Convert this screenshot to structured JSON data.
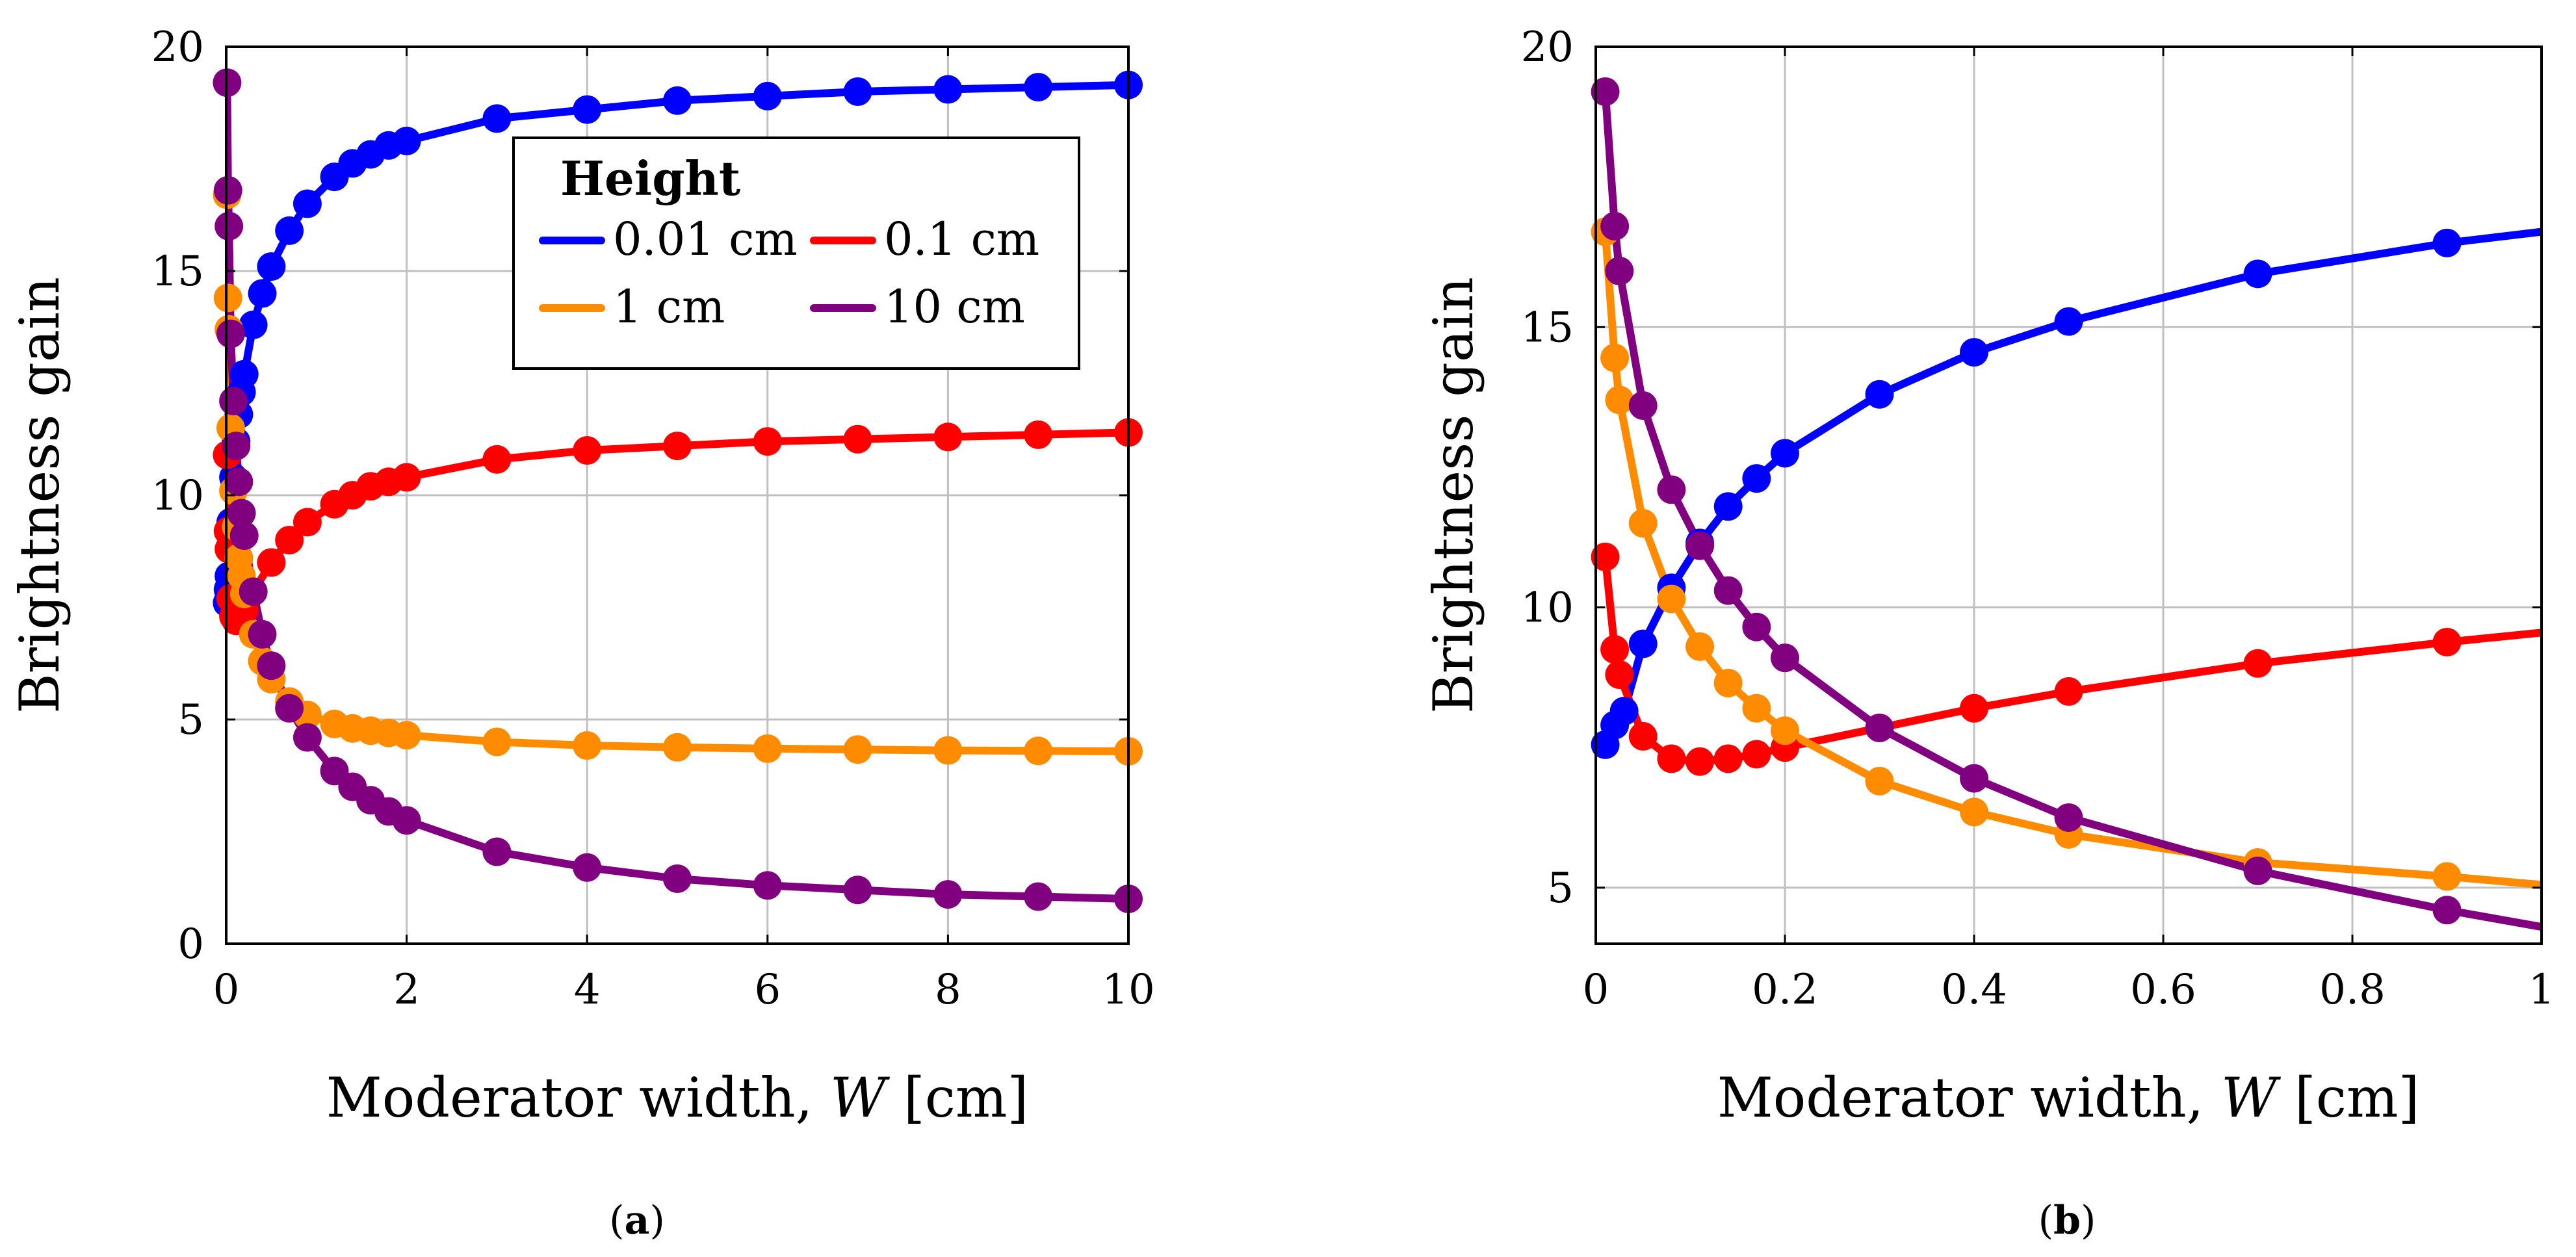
{
  "colors": {
    "h001": "#0000ff",
    "h01": "#ff0000",
    "h1": "#ff8c00",
    "h10": "#800080"
  },
  "chart_data": [
    {
      "type": "line",
      "panel": "(a)",
      "caption_letter": "a",
      "xlabel_prefix": "Moderator width, ",
      "xlabel_var": "W",
      "xlabel_unit": " [cm]",
      "ylabel": "Brightness gain",
      "xlim": [
        0,
        10
      ],
      "ylim": [
        0,
        20
      ],
      "xticks": [
        0,
        2,
        4,
        6,
        8,
        10
      ],
      "yticks": [
        0,
        5,
        10,
        15,
        20
      ],
      "xtick_labels": [
        "0",
        "2",
        "4",
        "6",
        "8",
        "10"
      ],
      "ytick_labels": [
        "0",
        "5",
        "10",
        "15",
        "20"
      ],
      "grid": true,
      "legend": {
        "title": "Height",
        "placement": "top-right",
        "entries": [
          "0.01 cm",
          "0.1 cm",
          "1 cm",
          "10 cm"
        ]
      },
      "series": [
        {
          "name": "0.01 cm",
          "color_key": "h001",
          "x": [
            0.01,
            0.02,
            0.03,
            0.05,
            0.08,
            0.11,
            0.14,
            0.17,
            0.2,
            0.3,
            0.4,
            0.5,
            0.7,
            0.9,
            1.2,
            1.4,
            1.6,
            1.8,
            2,
            3,
            4,
            5,
            6,
            7,
            8,
            9,
            10
          ],
          "y": [
            7.6,
            7.9,
            8.2,
            9.4,
            10.4,
            11.2,
            11.8,
            12.3,
            12.7,
            13.8,
            14.5,
            15.1,
            15.9,
            16.5,
            17.1,
            17.4,
            17.6,
            17.8,
            17.9,
            18.4,
            18.6,
            18.8,
            18.9,
            19.0,
            19.05,
            19.1,
            19.15
          ]
        },
        {
          "name": "0.1 cm",
          "color_key": "h01",
          "x": [
            0.01,
            0.02,
            0.03,
            0.05,
            0.08,
            0.11,
            0.14,
            0.17,
            0.2,
            0.3,
            0.5,
            0.7,
            0.9,
            1.2,
            1.4,
            1.6,
            1.8,
            2,
            3,
            4,
            5,
            6,
            7,
            8,
            9,
            10
          ],
          "y": [
            10.9,
            9.2,
            8.8,
            7.7,
            7.3,
            7.2,
            7.3,
            7.35,
            7.45,
            7.85,
            8.5,
            9.0,
            9.4,
            9.8,
            10.0,
            10.2,
            10.3,
            10.4,
            10.8,
            11.0,
            11.1,
            11.2,
            11.25,
            11.3,
            11.35,
            11.4
          ]
        },
        {
          "name": "1 cm",
          "color_key": "h1",
          "x": [
            0.01,
            0.02,
            0.03,
            0.05,
            0.08,
            0.11,
            0.14,
            0.17,
            0.2,
            0.3,
            0.4,
            0.5,
            0.7,
            0.9,
            1.2,
            1.4,
            1.6,
            1.8,
            2,
            3,
            4,
            5,
            6,
            7,
            8,
            9,
            10
          ],
          "y": [
            16.7,
            14.4,
            13.7,
            11.5,
            10.1,
            9.3,
            8.6,
            8.2,
            7.8,
            6.9,
            6.3,
            5.9,
            5.4,
            5.1,
            4.9,
            4.8,
            4.75,
            4.7,
            4.65,
            4.5,
            4.42,
            4.38,
            4.35,
            4.33,
            4.31,
            4.3,
            4.29
          ]
        },
        {
          "name": "10 cm",
          "color_key": "h10",
          "x": [
            0.01,
            0.02,
            0.03,
            0.05,
            0.08,
            0.11,
            0.14,
            0.17,
            0.2,
            0.3,
            0.4,
            0.5,
            0.7,
            0.9,
            1.2,
            1.4,
            1.6,
            1.8,
            2,
            3,
            4,
            5,
            6,
            7,
            8,
            9,
            10
          ],
          "y": [
            19.2,
            16.8,
            16.0,
            13.6,
            12.1,
            11.1,
            10.3,
            9.6,
            9.1,
            7.85,
            6.9,
            6.2,
            5.25,
            4.6,
            3.85,
            3.5,
            3.2,
            2.95,
            2.75,
            2.05,
            1.7,
            1.45,
            1.3,
            1.2,
            1.1,
            1.05,
            1.0
          ]
        }
      ]
    },
    {
      "type": "line",
      "panel": "(b)",
      "caption_letter": "b",
      "xlabel_prefix": "Moderator width, ",
      "xlabel_var": "W",
      "xlabel_unit": " [cm]",
      "ylabel": "Brightness gain",
      "xlim": [
        0,
        1
      ],
      "ylim": [
        4,
        20
      ],
      "xticks": [
        0,
        0.2,
        0.4,
        0.6,
        0.8,
        1
      ],
      "yticks": [
        5,
        10,
        15,
        20
      ],
      "xtick_labels": [
        "0",
        "0.2",
        "0.4",
        "0.6",
        "0.8",
        "1"
      ],
      "ytick_labels": [
        "5",
        "10",
        "15",
        "20"
      ],
      "grid": true,
      "series": [
        {
          "name": "0.01 cm",
          "color_key": "h001",
          "x": [
            0.01,
            0.02,
            0.03,
            0.05,
            0.08,
            0.11,
            0.14,
            0.17,
            0.2,
            0.3,
            0.4,
            0.5,
            0.7,
            0.9
          ],
          "y": [
            7.55,
            7.9,
            8.15,
            9.35,
            10.35,
            11.15,
            11.8,
            12.3,
            12.75,
            13.8,
            14.55,
            15.1,
            15.95,
            16.5
          ],
          "line_end": [
            1,
            16.7
          ]
        },
        {
          "name": "0.1 cm",
          "color_key": "h01",
          "x": [
            0.01,
            0.02,
            0.025,
            0.05,
            0.08,
            0.11,
            0.14,
            0.17,
            0.2,
            0.3,
            0.4,
            0.5,
            0.7,
            0.9
          ],
          "y": [
            10.9,
            9.25,
            8.8,
            7.7,
            7.3,
            7.25,
            7.3,
            7.38,
            7.5,
            7.85,
            8.2,
            8.5,
            9.0,
            9.38
          ],
          "line_end": [
            1,
            9.55
          ]
        },
        {
          "name": "1 cm",
          "color_key": "h1",
          "x": [
            0.01,
            0.02,
            0.025,
            0.05,
            0.08,
            0.11,
            0.14,
            0.17,
            0.2,
            0.3,
            0.4,
            0.5,
            0.7,
            0.9
          ],
          "y": [
            16.7,
            14.45,
            13.7,
            11.5,
            10.15,
            9.3,
            8.65,
            8.2,
            7.8,
            6.9,
            6.35,
            5.95,
            5.45,
            5.2
          ],
          "line_end": [
            1,
            5.05
          ]
        },
        {
          "name": "10 cm",
          "color_key": "h10",
          "x": [
            0.01,
            0.02,
            0.025,
            0.05,
            0.08,
            0.11,
            0.14,
            0.17,
            0.2,
            0.3,
            0.4,
            0.5,
            0.7,
            0.9
          ],
          "y": [
            19.2,
            16.8,
            16.0,
            13.6,
            12.1,
            11.1,
            10.3,
            9.65,
            9.1,
            7.85,
            6.95,
            6.25,
            5.3,
            4.6
          ],
          "line_end": [
            1,
            4.3
          ]
        }
      ]
    }
  ]
}
